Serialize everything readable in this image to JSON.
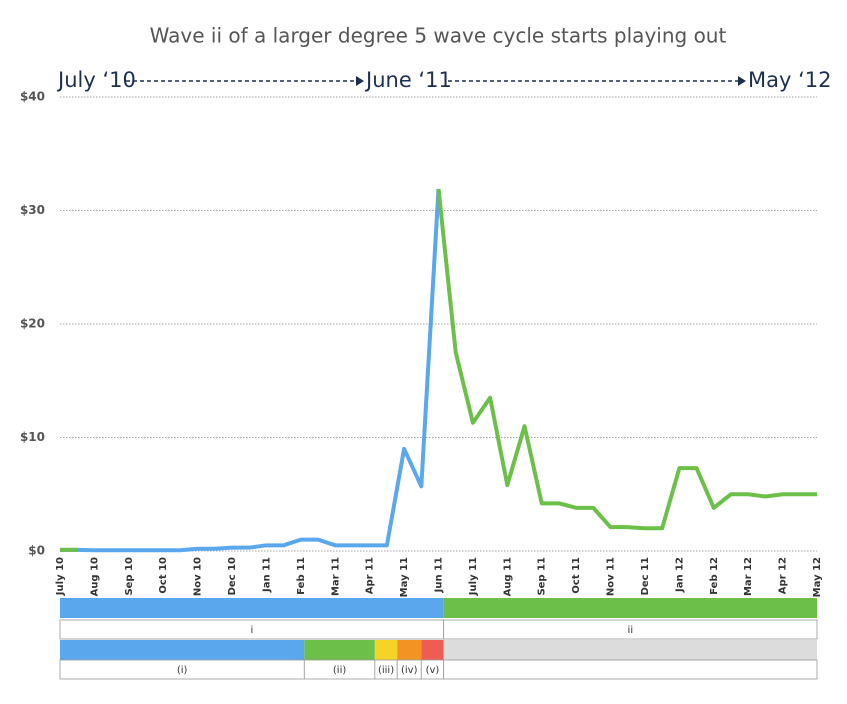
{
  "chart_data": {
    "type": "line",
    "title": "Wave ii of a larger degree 5 wave cycle starts playing out",
    "annotations": [
      "July ‘10",
      "June ‘11",
      "May ‘12"
    ],
    "categories": [
      "July 10",
      null,
      "Aug 10",
      null,
      "Sep 10",
      null,
      "Oct 10",
      null,
      "Nov 10",
      null,
      "Dec 10",
      null,
      "Jan 11",
      null,
      "Feb 11",
      null,
      "Mar 11",
      null,
      "Apr 11",
      null,
      "May 11",
      null,
      "Jun 11",
      null,
      "July 11",
      null,
      "Aug 11",
      null,
      "Sep 11",
      null,
      "Oct 11",
      null,
      "Nov 11",
      null,
      "Dec 11",
      null,
      "Jan 12",
      null,
      "Feb 12",
      null,
      "Mar 12",
      null,
      "Apr 12",
      null,
      "May 12"
    ],
    "series": [
      {
        "color": "#5aa7ee",
        "values": [
          0.1,
          0.1,
          0.07,
          0.07,
          0.07,
          0.07,
          0.07,
          0.07,
          0.2,
          0.2,
          0.3,
          0.3,
          0.5,
          0.5,
          1.0,
          1.0,
          0.5,
          0.5,
          0.5,
          0.5,
          9.0,
          5.7,
          31.9,
          null,
          null,
          null,
          null,
          null,
          null,
          null,
          null,
          null,
          null,
          null,
          null,
          null,
          null,
          null,
          null,
          null,
          null,
          null,
          null,
          null,
          null
        ]
      },
      {
        "color": "#6cc04a",
        "values": [
          0.1,
          0.1,
          null,
          null,
          null,
          null,
          null,
          null,
          null,
          null,
          null,
          null,
          null,
          null,
          null,
          null,
          null,
          null,
          null,
          null,
          null,
          null,
          31.9,
          17.5,
          11.3,
          13.5,
          5.8,
          11.0,
          4.2,
          4.2,
          3.8,
          3.8,
          2.1,
          2.1,
          2.0,
          2.0,
          7.3,
          7.3,
          3.8,
          5.0,
          5.0,
          4.8,
          5.0,
          5.0,
          5.0
        ]
      }
    ],
    "ylim": [
      0,
      40
    ],
    "yticks": [
      {
        "value": 0,
        "label": "$0"
      },
      {
        "value": 10,
        "label": "$10"
      },
      {
        "value": 20,
        "label": "$20"
      },
      {
        "value": 30,
        "label": "$30"
      },
      {
        "value": 40,
        "label": "$40"
      }
    ],
    "grid": true,
    "waves": [
      [
        {
          "label": "i",
          "color": "#5aa7ee",
          "start": 0,
          "end": 22.3
        },
        {
          "label": "ii",
          "color": "#6cc04a",
          "start": 22.3,
          "end": 44
        }
      ],
      [
        {
          "label": "(i)",
          "color": "#5aa7ee",
          "start": 0,
          "end": 14.2
        },
        {
          "label": "(ii)",
          "color": "#6cc04a",
          "start": 14.2,
          "end": 18.3
        },
        {
          "label": "(iii)",
          "color": "#f5d327",
          "start": 18.3,
          "end": 19.6
        },
        {
          "label": "(iv)",
          "color": "#f29324",
          "start": 19.6,
          "end": 21
        },
        {
          "label": "(v)",
          "color": "#ee5c55",
          "start": 21,
          "end": 22.3
        },
        {
          "color": "#dcdcdc",
          "start": 22.3,
          "end": 44
        }
      ]
    ]
  }
}
